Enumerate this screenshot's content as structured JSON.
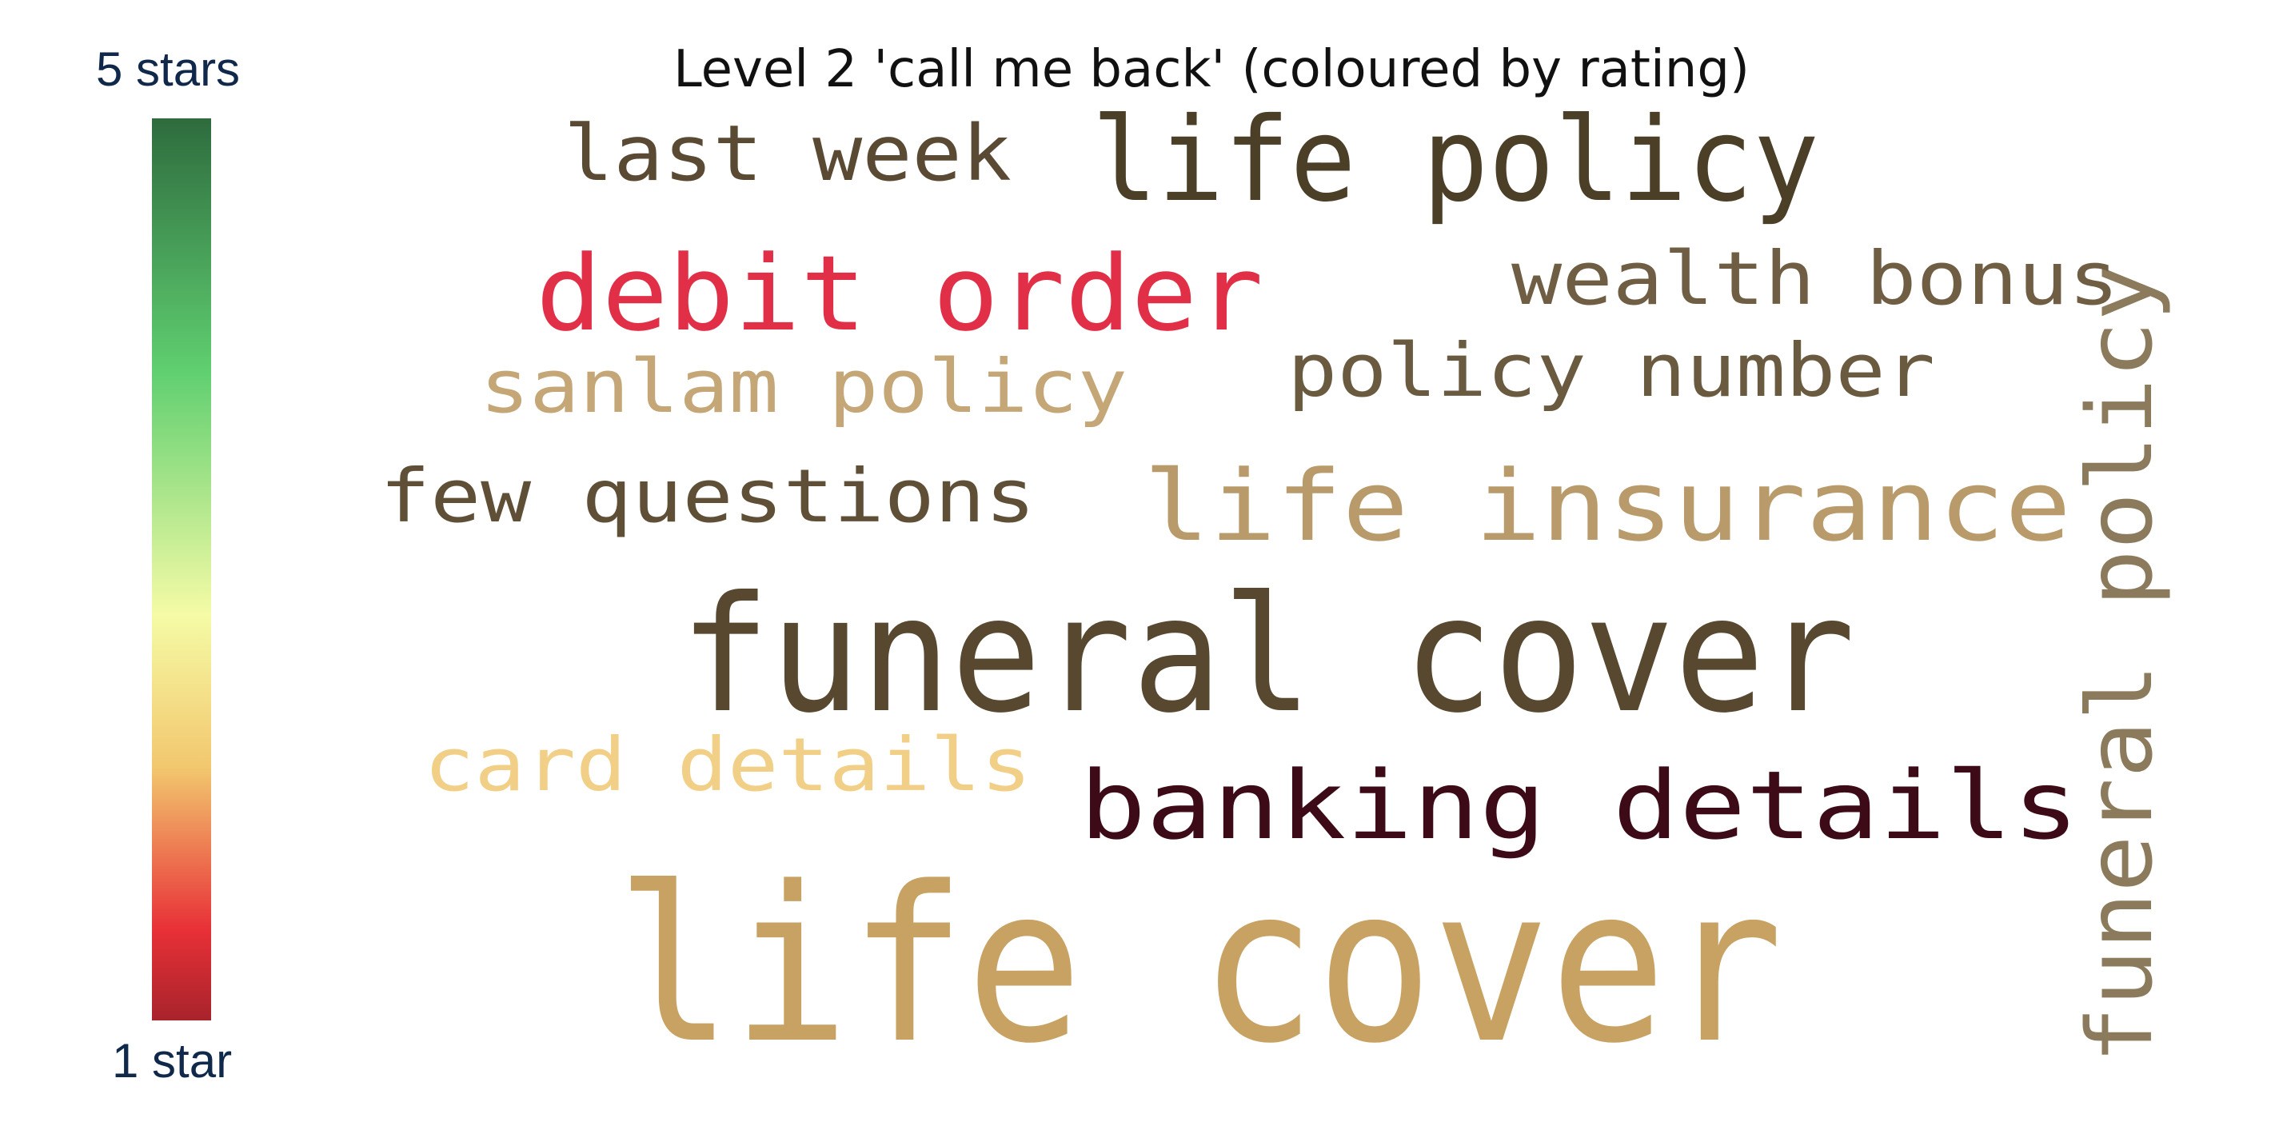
{
  "chart_data": {
    "type": "wordcloud",
    "title": "Level 2 'call me back' (coloured by rating)",
    "colorbar": {
      "top_label": "5 stars",
      "bottom_label": "1 star",
      "colors": [
        "#2e6b3e",
        "#5fcf70",
        "#f5fba6",
        "#f2c76e",
        "#e83037",
        "#a8232b"
      ]
    },
    "words": [
      {
        "text": "life cover",
        "color": "#c7a263"
      },
      {
        "text": "funeral cover",
        "color": "#57482f"
      },
      {
        "text": "life policy",
        "color": "#4b3f28"
      },
      {
        "text": "debit order",
        "color": "#e22f48"
      },
      {
        "text": "banking details",
        "color": "#3d0b17"
      },
      {
        "text": "life insurance",
        "color": "#b99b6b"
      },
      {
        "text": "funeral policy",
        "color": "#8c7a5c"
      },
      {
        "text": "last week",
        "color": "#5b4a33"
      },
      {
        "text": "wealth bonus",
        "color": "#6f5e44"
      },
      {
        "text": "policy number",
        "color": "#6a5a3f"
      },
      {
        "text": "sanlam policy",
        "color": "#c4a677"
      },
      {
        "text": "few questions",
        "color": "#5f4f37"
      },
      {
        "text": "card details",
        "color": "#f2cf87"
      }
    ]
  }
}
